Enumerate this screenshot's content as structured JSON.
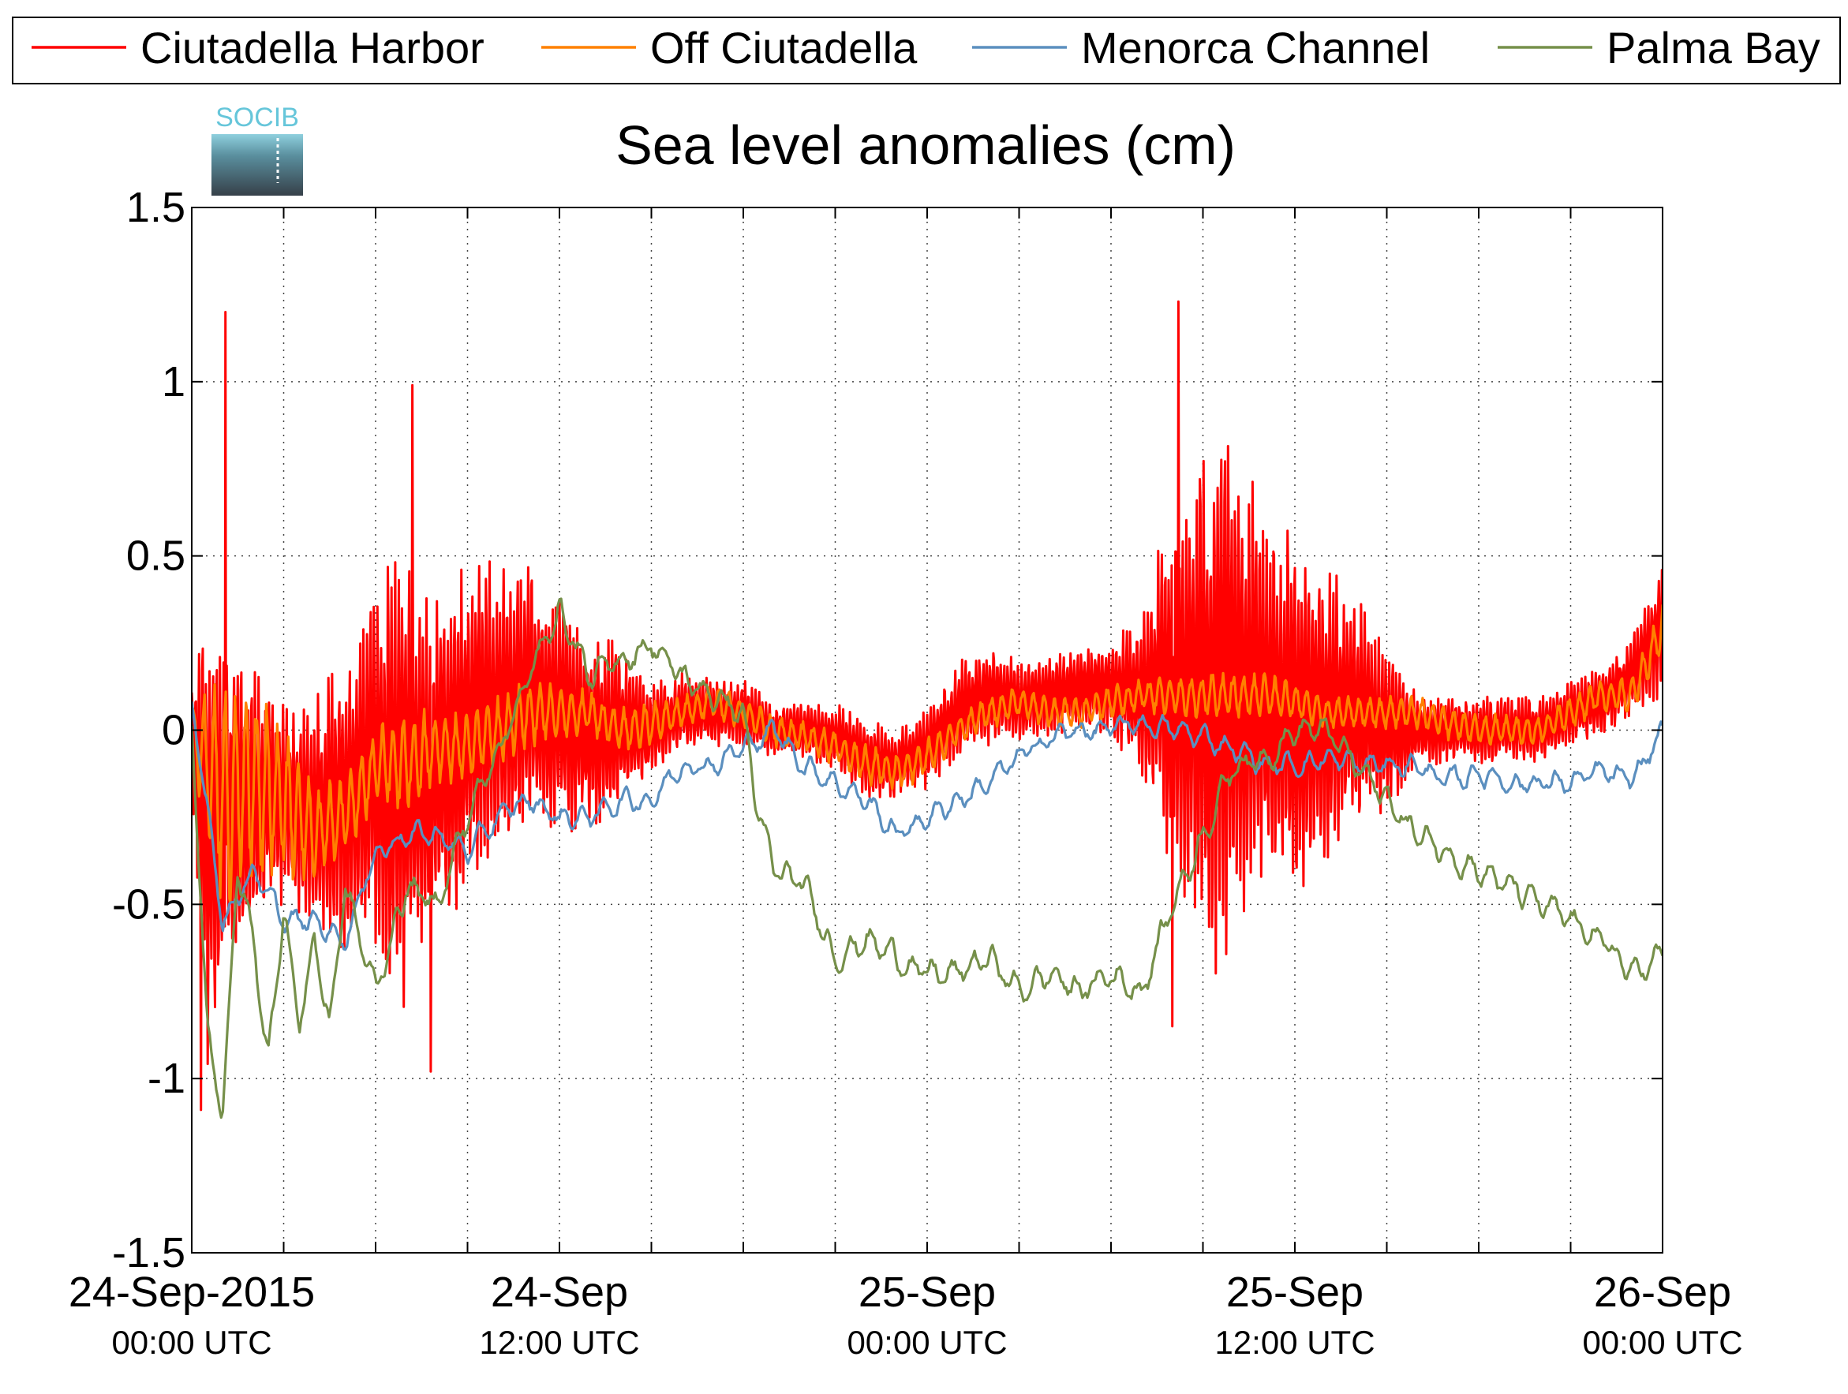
{
  "chart_data": {
    "type": "line",
    "title": "Sea level anomalies (cm)",
    "logo_text": "SOCIB",
    "xlabel": "",
    "ylabel": "",
    "ylim": [
      -1.5,
      1.5
    ],
    "xlim_hours": [
      0,
      48
    ],
    "grid": true,
    "legend_position": "top (outside plot, horizontal)",
    "y_ticks": [
      {
        "value": 1.5,
        "label": "1.5"
      },
      {
        "value": 1,
        "label": "1"
      },
      {
        "value": 0.5,
        "label": "0.5"
      },
      {
        "value": 0,
        "label": "0"
      },
      {
        "value": -0.5,
        "label": "-0.5"
      },
      {
        "value": -1,
        "label": "-1"
      },
      {
        "value": -1.5,
        "label": "-1.5"
      }
    ],
    "x_ticks": [
      {
        "hour": 0,
        "label": "24-Sep-2015",
        "sublabel": "00:00 UTC"
      },
      {
        "hour": 12,
        "label": "24-Sep",
        "sublabel": "12:00 UTC"
      },
      {
        "hour": 24,
        "label": "25-Sep",
        "sublabel": "00:00 UTC"
      },
      {
        "hour": 36,
        "label": "25-Sep",
        "sublabel": "12:00 UTC"
      },
      {
        "hour": 48,
        "label": "26-Sep",
        "sublabel": "00:00 UTC"
      }
    ],
    "minor_x_hours": [
      3,
      6,
      9,
      15,
      18,
      21,
      27,
      30,
      33,
      39,
      42,
      45
    ],
    "series": [
      {
        "name": "Ciutadella Harbor",
        "color": "#ff0000",
        "style": "high-frequency oscillation around smooth mean (envelope values)",
        "x_hours": [
          0.0,
          0.5,
          1.0,
          1.5,
          2.0,
          3.0,
          4.0,
          5.0,
          6.0,
          7.0,
          8.0,
          9.0,
          10.0,
          11.0,
          12.0,
          13.0,
          14.0,
          15.0,
          16.0,
          17.0,
          18.0,
          19.0,
          20.0,
          21.0,
          22.0,
          23.0,
          24.0,
          25.0,
          26.0,
          27.0,
          28.0,
          29.0,
          30.0,
          31.0,
          32.0,
          33.0,
          33.5,
          34.0,
          35.0,
          36.0,
          37.0,
          38.0,
          39.0,
          40.0,
          41.0,
          42.0,
          43.0,
          44.0,
          45.0,
          46.0,
          47.0,
          48.0
        ],
        "mean": [
          0.0,
          -0.3,
          -0.3,
          -0.2,
          -0.2,
          -0.2,
          -0.25,
          -0.2,
          -0.1,
          -0.15,
          -0.1,
          0.0,
          0.05,
          0.1,
          0.05,
          0.0,
          0.0,
          0.0,
          0.05,
          0.05,
          0.05,
          0.0,
          0.0,
          -0.02,
          -0.08,
          -0.1,
          -0.05,
          0.05,
          0.1,
          0.08,
          0.1,
          0.12,
          0.12,
          0.1,
          0.12,
          0.1,
          0.1,
          0.1,
          0.08,
          0.05,
          0.05,
          0.05,
          0.0,
          0.0,
          0.0,
          0.0,
          0.0,
          0.0,
          0.05,
          0.08,
          0.15,
          0.3
        ],
        "amplitude": [
          0.15,
          0.7,
          0.6,
          0.5,
          0.4,
          0.3,
          0.35,
          0.45,
          0.55,
          0.75,
          0.55,
          0.5,
          0.45,
          0.4,
          0.35,
          0.3,
          0.25,
          0.15,
          0.12,
          0.1,
          0.1,
          0.08,
          0.08,
          0.1,
          0.12,
          0.1,
          0.12,
          0.15,
          0.15,
          0.12,
          0.12,
          0.12,
          0.15,
          0.25,
          0.55,
          0.75,
          0.9,
          0.75,
          0.6,
          0.55,
          0.45,
          0.35,
          0.25,
          0.12,
          0.1,
          0.1,
          0.1,
          0.1,
          0.1,
          0.1,
          0.12,
          0.2
        ],
        "peaks": [
          {
            "x_hours": 1.1,
            "y": 1.2
          },
          {
            "x_hours": 7.2,
            "y": 0.99
          },
          {
            "x_hours": 32.2,
            "y": 1.23
          },
          {
            "x_hours": 0.3,
            "y": -1.09
          },
          {
            "x_hours": 7.8,
            "y": -0.98
          },
          {
            "x_hours": 32.0,
            "y": -0.85
          }
        ]
      },
      {
        "name": "Off Ciutadella",
        "color": "#ff8000",
        "style": "moderate oscillation around smooth mean",
        "x_hours": [
          0.0,
          1.0,
          2.0,
          3.0,
          4.0,
          5.0,
          6.0,
          7.0,
          8.0,
          9.0,
          10.0,
          11.0,
          12.0,
          13.0,
          14.0,
          15.0,
          16.0,
          17.0,
          18.0,
          19.0,
          20.0,
          21.0,
          22.0,
          23.0,
          24.0,
          25.0,
          26.0,
          27.0,
          28.0,
          29.0,
          30.0,
          31.0,
          32.0,
          33.0,
          34.0,
          35.0,
          36.0,
          37.0,
          38.0,
          39.0,
          40.0,
          41.0,
          42.0,
          43.0,
          44.0,
          45.0,
          46.0,
          47.0,
          48.0
        ],
        "mean": [
          0.0,
          -0.2,
          -0.15,
          -0.2,
          -0.3,
          -0.25,
          -0.1,
          -0.1,
          -0.05,
          -0.05,
          0.0,
          0.05,
          0.05,
          0.05,
          0.0,
          0.02,
          0.05,
          0.08,
          0.05,
          0.0,
          -0.02,
          -0.05,
          -0.1,
          -0.12,
          -0.08,
          0.0,
          0.05,
          0.08,
          0.05,
          0.05,
          0.08,
          0.1,
          0.1,
          0.1,
          0.1,
          0.1,
          0.08,
          0.05,
          0.05,
          0.05,
          0.05,
          0.02,
          0.0,
          0.0,
          0.0,
          0.05,
          0.1,
          0.1,
          0.3
        ],
        "amplitude": [
          0.1,
          0.35,
          0.3,
          0.25,
          0.15,
          0.12,
          0.12,
          0.15,
          0.12,
          0.1,
          0.1,
          0.1,
          0.08,
          0.07,
          0.07,
          0.07,
          0.05,
          0.05,
          0.05,
          0.05,
          0.05,
          0.05,
          0.06,
          0.06,
          0.06,
          0.05,
          0.05,
          0.05,
          0.05,
          0.05,
          0.05,
          0.05,
          0.06,
          0.07,
          0.07,
          0.07,
          0.06,
          0.05,
          0.05,
          0.05,
          0.05,
          0.05,
          0.05,
          0.05,
          0.05,
          0.05,
          0.05,
          0.06,
          0.08
        ]
      },
      {
        "name": "Menorca Channel",
        "color": "#5b8fbf",
        "style": "smooth line with small wiggle",
        "x_hours": [
          0.0,
          0.5,
          1.0,
          2.0,
          3.0,
          4.0,
          5.0,
          6.0,
          7.0,
          8.0,
          9.0,
          10.0,
          11.0,
          12.0,
          13.0,
          14.0,
          15.0,
          16.0,
          17.0,
          18.0,
          19.0,
          20.0,
          21.0,
          22.0,
          23.0,
          24.0,
          25.0,
          26.0,
          27.0,
          28.0,
          29.0,
          30.0,
          31.0,
          32.0,
          33.0,
          34.0,
          35.0,
          36.0,
          37.0,
          38.0,
          39.0,
          40.0,
          41.0,
          42.0,
          43.0,
          44.0,
          45.0,
          46.0,
          47.0,
          48.0
        ],
        "values": [
          0.05,
          -0.2,
          -0.55,
          -0.4,
          -0.55,
          -0.55,
          -0.6,
          -0.35,
          -0.3,
          -0.3,
          -0.35,
          -0.25,
          -0.2,
          -0.25,
          -0.25,
          -0.2,
          -0.2,
          -0.1,
          -0.1,
          -0.05,
          0.0,
          -0.1,
          -0.15,
          -0.2,
          -0.3,
          -0.25,
          -0.2,
          -0.15,
          -0.08,
          -0.02,
          0.0,
          0.0,
          0.02,
          0.0,
          -0.02,
          -0.05,
          -0.1,
          -0.1,
          -0.08,
          -0.1,
          -0.1,
          -0.1,
          -0.15,
          -0.12,
          -0.15,
          -0.15,
          -0.15,
          -0.12,
          -0.15,
          0.0
        ],
        "wiggle": 0.04
      },
      {
        "name": "Palma Bay",
        "color": "#76904a",
        "style": "smooth line with small wiggle",
        "x_hours": [
          0.0,
          0.5,
          1.0,
          1.5,
          2.0,
          2.5,
          3.0,
          3.5,
          4.0,
          4.5,
          5.0,
          5.5,
          6.0,
          7.0,
          8.0,
          9.0,
          10.0,
          11.0,
          12.0,
          13.0,
          14.0,
          15.0,
          16.0,
          17.0,
          18.0,
          18.5,
          19.0,
          20.0,
          21.0,
          22.0,
          23.0,
          24.0,
          25.0,
          26.0,
          27.0,
          28.0,
          29.0,
          30.0,
          31.0,
          32.0,
          33.0,
          34.0,
          35.0,
          36.0,
          37.0,
          38.0,
          39.0,
          40.0,
          41.0,
          42.0,
          43.0,
          44.0,
          45.0,
          46.0,
          47.0,
          48.0
        ],
        "values": [
          0.0,
          -0.85,
          -1.1,
          -0.4,
          -0.6,
          -0.95,
          -0.5,
          -0.85,
          -0.6,
          -0.85,
          -0.45,
          -0.6,
          -0.75,
          -0.45,
          -0.5,
          -0.25,
          -0.05,
          0.15,
          0.35,
          0.15,
          0.2,
          0.25,
          0.15,
          0.1,
          0.05,
          -0.25,
          -0.4,
          -0.45,
          -0.65,
          -0.6,
          -0.65,
          -0.7,
          -0.7,
          -0.65,
          -0.75,
          -0.7,
          -0.75,
          -0.7,
          -0.75,
          -0.5,
          -0.3,
          -0.1,
          -0.08,
          0.0,
          0.0,
          -0.1,
          -0.2,
          -0.3,
          -0.35,
          -0.4,
          -0.45,
          -0.5,
          -0.55,
          -0.6,
          -0.7,
          -0.65
        ],
        "wiggle": 0.05
      }
    ]
  }
}
